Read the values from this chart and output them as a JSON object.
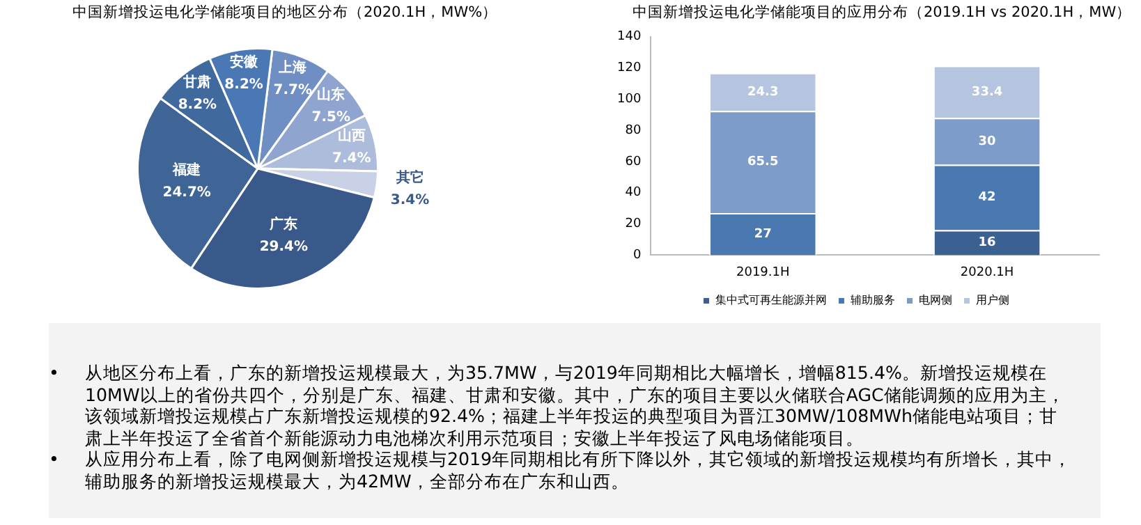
{
  "chart_data": [
    {
      "type": "pie",
      "title": "中国新增投运电化学储能项目的地区分布（2020.1H，MW%）",
      "categories": [
        "上海",
        "山东",
        "山西",
        "其它",
        "广东",
        "福建",
        "甘肃",
        "安徽"
      ],
      "values": [
        7.7,
        7.5,
        7.4,
        3.4,
        29.4,
        24.7,
        8.2,
        8.2
      ],
      "value_labels": [
        "7.7%",
        "7.5%",
        "7.4%",
        "3.4%",
        "29.4%",
        "24.7%",
        "8.2%",
        "8.2%"
      ],
      "colors": [
        "#6f8fc4",
        "#8fa5cf",
        "#aebcdc",
        "#c8d1e6",
        "#39598a",
        "#3f6496",
        "#40699d",
        "#4a78b4"
      ],
      "legend": false,
      "annotations": [
        "• 从地区分布上看，广东的新增投运规模最大，为35.7MW，与2019年同期相比大幅增长，增幅815.4%。新增投运规模在10MW以上的省份共四个，分别是广东、福建、甘肃和安徽。其中，广东的项目主要以火储联合AGC储能调频的应用为主，该领域新增投运规模占广东新增投运规模的92.4%；福建上半年投运的典型项目为晋江30MW/108MWh储能电站项目；甘肃上半年投运了全省首个新能源动力电池梯次利用示范项目；安徽上半年投运了风电场储能项目。",
        "• 从应用分布上看，除了电网侧新增投运规模与2019年同期相比有所下降以外，其它领域的新增投运规模均有所增长，其中，辅助服务的新增投运规模最大，为42MW，全部分布在广东和山西。"
      ]
    },
    {
      "type": "bar",
      "title": "中国新增投运电化学储能项目的应用分布（2019.1H vs 2020.1H，MW）",
      "categories": [
        "2019.1H",
        "2020.1H"
      ],
      "stacked": true,
      "series": [
        {
          "name": "集中式可再生能源并网",
          "color": "#3b6092",
          "values": [
            null,
            16
          ]
        },
        {
          "name": "辅助服务",
          "color": "#4a78b0",
          "values": [
            27,
            42
          ]
        },
        {
          "name": "电网侧",
          "color": "#7e9cc9",
          "values": [
            65.5,
            30
          ]
        },
        {
          "name": "用户侧",
          "color": "#b5c4df",
          "values": [
            24.3,
            33.4
          ]
        }
      ],
      "ylim": [
        0,
        140
      ],
      "yticks": [
        0,
        20,
        40,
        60,
        80,
        100,
        120,
        140
      ],
      "grid": false,
      "legend": "bottom",
      "data_labels": true
    }
  ]
}
